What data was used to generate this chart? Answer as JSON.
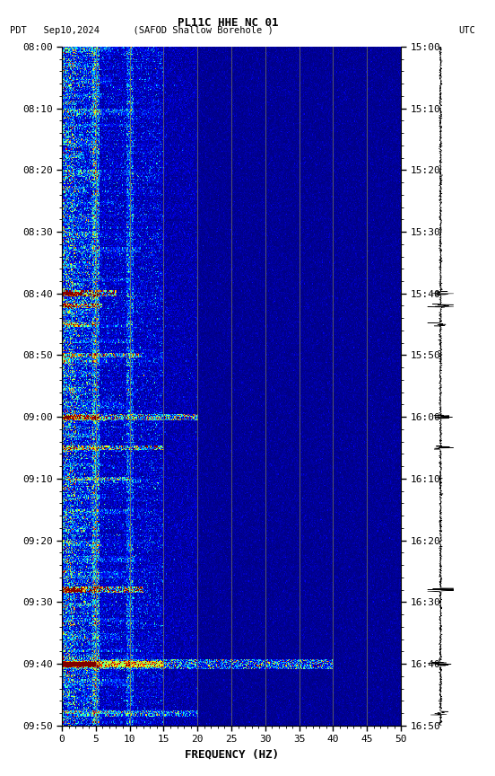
{
  "title_line1": "PL11C HHE NC 01",
  "title_line2_left": "PDT   Sep10,2024      (SAFOD Shallow Borehole )",
  "title_line2_right": "UTC",
  "xlabel": "FREQUENCY (HZ)",
  "freq_min": 0,
  "freq_max": 50,
  "freq_ticks": [
    0,
    5,
    10,
    15,
    20,
    25,
    30,
    35,
    40,
    45,
    50
  ],
  "time_ticks_pdt": [
    "08:00",
    "08:10",
    "08:20",
    "08:30",
    "08:40",
    "08:50",
    "09:00",
    "09:10",
    "09:20",
    "09:30",
    "09:40",
    "09:50"
  ],
  "time_ticks_utc": [
    "15:00",
    "15:10",
    "15:20",
    "15:30",
    "15:40",
    "15:50",
    "16:00",
    "16:10",
    "16:20",
    "16:30",
    "16:40",
    "16:50"
  ],
  "bg_color": "#ffffff",
  "colormap": "jet",
  "fig_width": 5.52,
  "fig_height": 8.64,
  "dpi": 100,
  "grid_color": "#9090601",
  "grid_linewidth": 0.6,
  "tick_fontsize": 8,
  "title_fontsize": 9
}
